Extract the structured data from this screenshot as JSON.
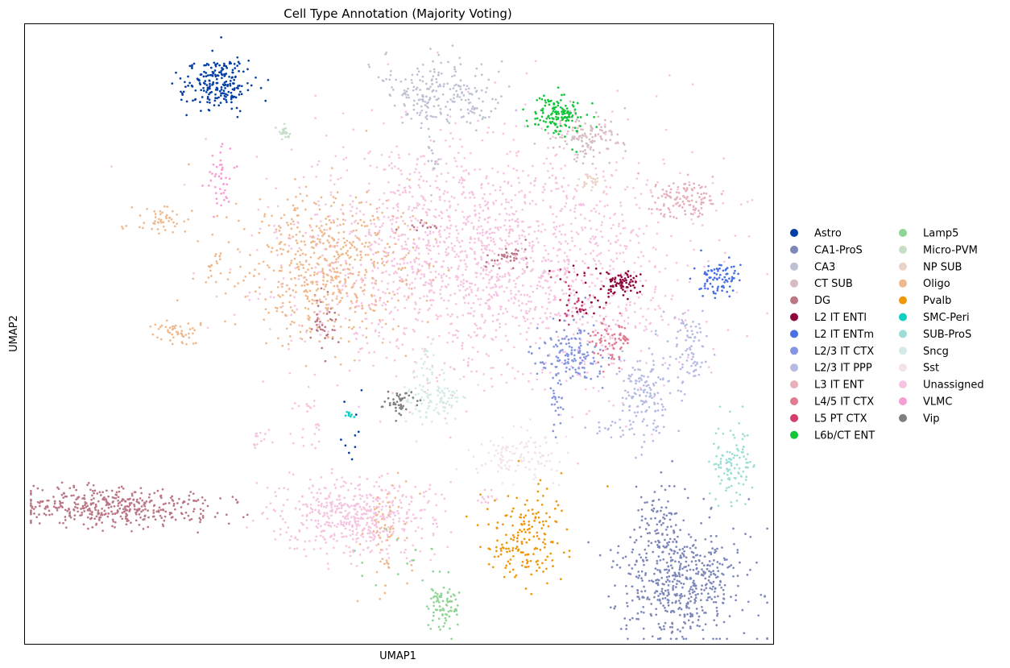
{
  "chart_data": {
    "type": "scatter",
    "title": "Cell Type Annotation (Majority Voting)",
    "xlabel": "UMAP1",
    "ylabel": "UMAP2",
    "xlim": [
      0,
      100
    ],
    "ylim": [
      0,
      100
    ],
    "grid": false,
    "ticks": false,
    "legend_placement": "right, outside plot, 2 columns",
    "series": [
      {
        "name": "Astro",
        "color": "#023fa5",
        "clusters": [
          {
            "cx": 25.5,
            "cy": 90.3,
            "sx": 2.4,
            "sy": 2.0,
            "n": 220
          },
          {
            "cx": 43.9,
            "cy": 34.5,
            "sx": 0.8,
            "sy": 2.5,
            "n": 10
          }
        ]
      },
      {
        "name": "CA1-ProS",
        "color": "#7d87b9",
        "clusters": [
          {
            "cx": 87.6,
            "cy": 9.7,
            "sx": 4.0,
            "sy": 4.8,
            "n": 520
          },
          {
            "cx": 85.1,
            "cy": 19.0,
            "sx": 1.6,
            "sy": 3.5,
            "n": 80
          }
        ]
      },
      {
        "name": "CA3",
        "color": "#bec1d4",
        "clusters": [
          {
            "cx": 54.9,
            "cy": 89.5,
            "sx": 3.8,
            "sy": 2.8,
            "n": 200
          },
          {
            "cx": 60.3,
            "cy": 86.3,
            "sx": 1.2,
            "sy": 1.4,
            "n": 30
          },
          {
            "cx": 54.8,
            "cy": 79.6,
            "sx": 0.5,
            "sy": 3.0,
            "n": 15
          }
        ]
      },
      {
        "name": "CT SUB",
        "color": "#d6bcc0",
        "clusters": [
          {
            "cx": 74.9,
            "cy": 81.6,
            "sx": 2.2,
            "sy": 2.0,
            "n": 120
          }
        ]
      },
      {
        "name": "DG",
        "color": "#bb7784",
        "clusters": [
          {
            "cx": 12.3,
            "cy": 22.1,
            "sx": 6.8,
            "sy": 1.6,
            "n": 420
          },
          {
            "cx": 40.0,
            "cy": 51.9,
            "sx": 1.0,
            "sy": 2.3,
            "n": 40
          },
          {
            "cx": 64.4,
            "cy": 62.4,
            "sx": 1.6,
            "sy": 1.0,
            "n": 35
          },
          {
            "cx": 52.9,
            "cy": 67.8,
            "sx": 1.4,
            "sy": 0.6,
            "n": 12
          }
        ]
      },
      {
        "name": "L2 IT ENTl",
        "color": "#8e063b",
        "clusters": [
          {
            "cx": 79.7,
            "cy": 58.1,
            "sx": 1.3,
            "sy": 1.0,
            "n": 70
          },
          {
            "cx": 75.2,
            "cy": 56.0,
            "sx": 2.3,
            "sy": 2.5,
            "n": 30
          }
        ]
      },
      {
        "name": "L2 IT ENTm",
        "color": "#4a6fe3",
        "clusters": [
          {
            "cx": 92.7,
            "cy": 59.0,
            "sx": 1.3,
            "sy": 1.5,
            "n": 85
          }
        ]
      },
      {
        "name": "L2/3 IT CTX",
        "color": "#8595e1",
        "clusters": [
          {
            "cx": 72.9,
            "cy": 46.8,
            "sx": 2.5,
            "sy": 2.5,
            "n": 150
          },
          {
            "cx": 70.8,
            "cy": 38.0,
            "sx": 0.5,
            "sy": 3.5,
            "n": 20
          }
        ]
      },
      {
        "name": "L2/3 IT PPP",
        "color": "#b5bbe3",
        "clusters": [
          {
            "cx": 82.9,
            "cy": 40.6,
            "sx": 1.6,
            "sy": 3.5,
            "n": 140
          },
          {
            "cx": 88.6,
            "cy": 46.6,
            "sx": 1.2,
            "sy": 3.2,
            "n": 80
          },
          {
            "cx": 78.6,
            "cy": 34.8,
            "sx": 1.8,
            "sy": 0.8,
            "n": 20
          }
        ]
      },
      {
        "name": "L3 IT ENT",
        "color": "#e6afb9",
        "clusters": [
          {
            "cx": 87.7,
            "cy": 71.8,
            "sx": 2.4,
            "sy": 1.7,
            "n": 110
          }
        ]
      },
      {
        "name": "L4/5 IT CTX",
        "color": "#e07b91",
        "clusters": [
          {
            "cx": 78.4,
            "cy": 48.7,
            "sx": 1.6,
            "sy": 2.0,
            "n": 70
          }
        ]
      },
      {
        "name": "L5 PT CTX",
        "color": "#d33f6a",
        "clusters": [
          {
            "cx": 73.3,
            "cy": 56.8,
            "sx": 1.0,
            "sy": 2.5,
            "n": 25
          }
        ]
      },
      {
        "name": "L6b/CT ENT",
        "color": "#11c638",
        "clusters": [
          {
            "cx": 71.2,
            "cy": 85.3,
            "sx": 1.8,
            "sy": 1.6,
            "n": 140
          }
        ]
      },
      {
        "name": "Lamp5",
        "color": "#8dd593",
        "clusters": [
          {
            "cx": 56.2,
            "cy": 6.3,
            "sx": 1.2,
            "sy": 1.8,
            "n": 80
          },
          {
            "cx": 50.1,
            "cy": 13.9,
            "sx": 4.0,
            "sy": 3.0,
            "n": 18
          }
        ]
      },
      {
        "name": "Micro-PVM",
        "color": "#c6dec7",
        "clusters": [
          {
            "cx": 34.6,
            "cy": 82.3,
            "sx": 0.4,
            "sy": 0.7,
            "n": 22
          }
        ]
      },
      {
        "name": "NP SUB",
        "color": "#ead3c6",
        "clusters": [
          {
            "cx": 75.5,
            "cy": 74.7,
            "sx": 1.0,
            "sy": 0.8,
            "n": 25
          }
        ]
      },
      {
        "name": "Oligo",
        "color": "#f0b98d",
        "clusters": [
          {
            "cx": 40.3,
            "cy": 61.2,
            "sx": 6.0,
            "sy": 6.0,
            "n": 560
          },
          {
            "cx": 18.3,
            "cy": 68.1,
            "sx": 2.4,
            "sy": 1.2,
            "n": 50
          },
          {
            "cx": 20.4,
            "cy": 50.5,
            "sx": 1.6,
            "sy": 1.2,
            "n": 50
          },
          {
            "cx": 25.1,
            "cy": 61.2,
            "sx": 0.7,
            "sy": 2.0,
            "n": 15
          },
          {
            "cx": 48.2,
            "cy": 17.3,
            "sx": 1.4,
            "sy": 4.0,
            "n": 60
          }
        ]
      },
      {
        "name": "Pvalb",
        "color": "#ef9708",
        "clusters": [
          {
            "cx": 66.3,
            "cy": 17.0,
            "sx": 3.0,
            "sy": 4.0,
            "n": 180
          }
        ]
      },
      {
        "name": "SMC-Peri",
        "color": "#0fcfc0",
        "clusters": [
          {
            "cx": 43.3,
            "cy": 36.8,
            "sx": 0.4,
            "sy": 0.4,
            "n": 10
          }
        ]
      },
      {
        "name": "SUB-ProS",
        "color": "#9cded6",
        "clusters": [
          {
            "cx": 94.2,
            "cy": 29.5,
            "sx": 1.4,
            "sy": 3.0,
            "n": 110
          }
        ]
      },
      {
        "name": "Sncg",
        "color": "#d5eae7",
        "clusters": [
          {
            "cx": 54.6,
            "cy": 39.4,
            "sx": 2.0,
            "sy": 2.0,
            "n": 110
          },
          {
            "cx": 53.7,
            "cy": 45.7,
            "sx": 0.6,
            "sy": 2.0,
            "n": 20
          }
        ]
      },
      {
        "name": "Sst",
        "color": "#f3e1eb",
        "clusters": [
          {
            "cx": 65.4,
            "cy": 30.1,
            "sx": 2.8,
            "sy": 2.0,
            "n": 110
          }
        ]
      },
      {
        "name": "Unassigned",
        "color": "#f6c4e1",
        "clusters": [
          {
            "cx": 59.5,
            "cy": 62.4,
            "sx": 12.0,
            "sy": 10.0,
            "n": 1700
          },
          {
            "cx": 44.5,
            "cy": 20.6,
            "sx": 5.0,
            "sy": 3.0,
            "n": 520
          },
          {
            "cx": 79.0,
            "cy": 60.0,
            "sx": 8.0,
            "sy": 10.0,
            "n": 220
          },
          {
            "cx": 37.8,
            "cy": 36.8,
            "sx": 1.3,
            "sy": 2.5,
            "n": 25
          },
          {
            "cx": 31.7,
            "cy": 33.0,
            "sx": 0.8,
            "sy": 1.0,
            "n": 15
          },
          {
            "cx": 61.7,
            "cy": 23.6,
            "sx": 0.6,
            "sy": 0.8,
            "n": 12
          }
        ]
      },
      {
        "name": "VLMC",
        "color": "#f79cd4",
        "clusters": [
          {
            "cx": 26.1,
            "cy": 75.6,
            "sx": 0.8,
            "sy": 2.4,
            "n": 45
          }
        ]
      },
      {
        "name": "Vip",
        "color": "#7f7f7f",
        "clusters": [
          {
            "cx": 50.1,
            "cy": 39.0,
            "sx": 1.4,
            "sy": 1.2,
            "n": 45
          }
        ]
      }
    ]
  }
}
